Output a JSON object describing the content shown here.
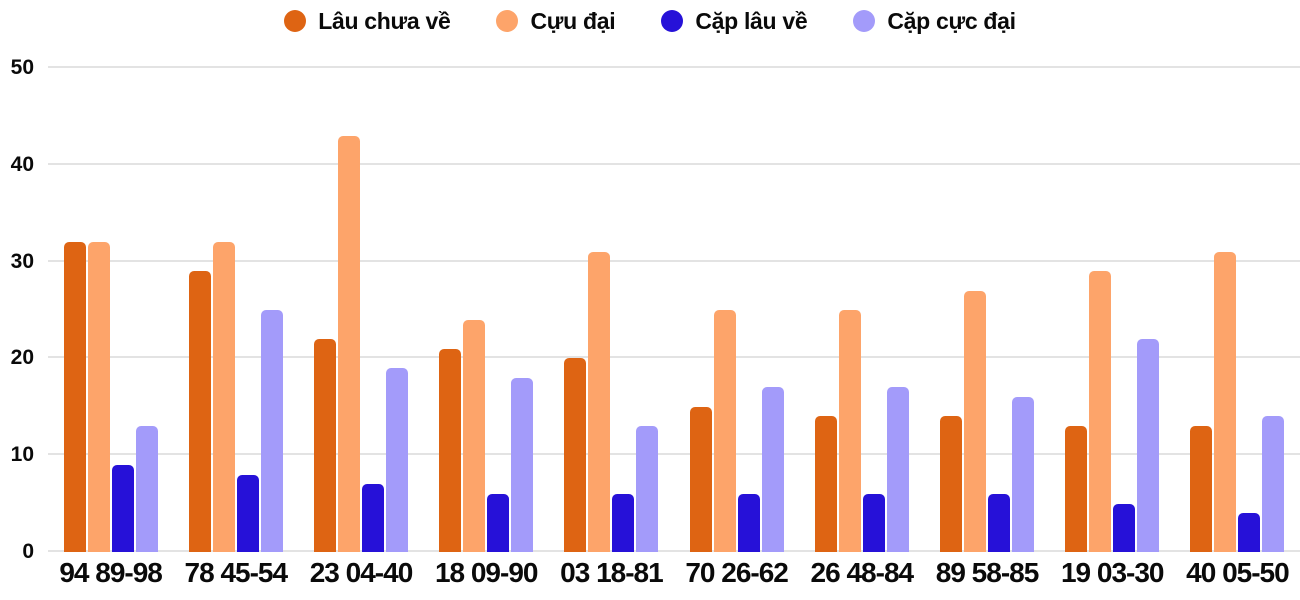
{
  "chart_data": {
    "type": "bar",
    "title": "",
    "xlabel": "",
    "ylabel": "",
    "categories": [
      "94 89-98",
      "78 45-54",
      "23 04-40",
      "18 09-90",
      "03 18-81",
      "70 26-62",
      "26 48-84",
      "89 58-85",
      "19 03-30",
      "40 05-50"
    ],
    "series": [
      {
        "name": "Lâu chưa về",
        "color": "#de6413",
        "values": [
          32,
          29,
          22,
          21,
          20,
          15,
          14,
          14,
          13,
          13
        ]
      },
      {
        "name": "Cựu đại",
        "color": "#fda46a",
        "values": [
          32,
          32,
          43,
          24,
          31,
          25,
          25,
          27,
          29,
          31
        ]
      },
      {
        "name": "Cặp lâu về",
        "color": "#2611d8",
        "values": [
          9,
          8,
          7,
          6,
          6,
          6,
          6,
          6,
          5,
          4
        ]
      },
      {
        "name": "Cặp cực đại",
        "color": "#a39bfa",
        "values": [
          13,
          25,
          19,
          18,
          13,
          17,
          17,
          16,
          22,
          14
        ]
      }
    ],
    "ylim": [
      0,
      50
    ],
    "yticks": [
      0,
      10,
      20,
      30,
      40,
      50
    ],
    "grid": "horizontal",
    "legend_position": "top"
  },
  "colors": {
    "background": "#ffffff",
    "gridline": "#e3e3e3",
    "text": "#0a0a0a"
  }
}
